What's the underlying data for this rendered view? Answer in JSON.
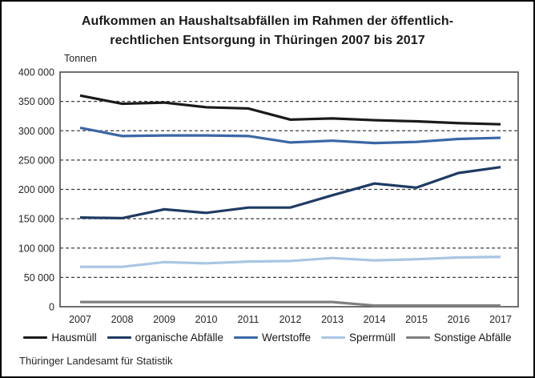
{
  "source": "Thüringer Landesamt für Statistik",
  "chart_data": {
    "type": "line",
    "title": "Aufkommen an Haushaltsabfällen im Rahmen der öffentlich-rechtlichen Entsorgung in Thüringen 2007 bis 2017",
    "title_lines": [
      "Aufkommen an Haushaltsabfällen im Rahmen der öffentlich-",
      "rechtlichen Entsorgung in Thüringen 2007 bis 2017"
    ],
    "ylabel": "Tonnen",
    "xlabel": "",
    "ylim": [
      0,
      400000
    ],
    "grid": "horizontal-dashed",
    "legend_position": "bottom",
    "categories": [
      "2007",
      "2008",
      "2009",
      "2010",
      "2011",
      "2012",
      "2013",
      "2014",
      "2015",
      "2016",
      "2017"
    ],
    "y_ticks": [
      {
        "value": 400000,
        "label": "400 000"
      },
      {
        "value": 350000,
        "label": "350 000"
      },
      {
        "value": 300000,
        "label": "300 000"
      },
      {
        "value": 250000,
        "label": "250 000"
      },
      {
        "value": 200000,
        "label": "200 000"
      },
      {
        "value": 150000,
        "label": "150 000"
      },
      {
        "value": 100000,
        "label": "100 000"
      },
      {
        "value": 50000,
        "label": "50 000"
      },
      {
        "value": 0,
        "label": "0"
      }
    ],
    "series": [
      {
        "name": "Hausmüll",
        "color": "#1a1a1a",
        "values": [
          360000,
          346000,
          348000,
          340000,
          338000,
          319000,
          321000,
          318000,
          316000,
          313000,
          311000
        ]
      },
      {
        "name": "organische Abfälle",
        "color": "#1f3b63",
        "values": [
          152000,
          151000,
          166000,
          160000,
          169000,
          169000,
          190000,
          210000,
          203000,
          228000,
          238000
        ]
      },
      {
        "name": "Wertstoffe",
        "color": "#3a67a5",
        "values": [
          305000,
          291000,
          292000,
          292000,
          291000,
          280000,
          283000,
          279000,
          281000,
          286000,
          288000
        ]
      },
      {
        "name": "Sperrmüll",
        "color": "#a9c6e3",
        "values": [
          68000,
          68000,
          76000,
          74000,
          77000,
          78000,
          83000,
          79000,
          81000,
          84000,
          85000
        ]
      },
      {
        "name": "Sonstige Abfälle",
        "color": "#7f7f7f",
        "values": [
          8000,
          8000,
          8000,
          8000,
          8000,
          8000,
          8000,
          2000,
          2000,
          2000,
          2000
        ]
      }
    ]
  }
}
